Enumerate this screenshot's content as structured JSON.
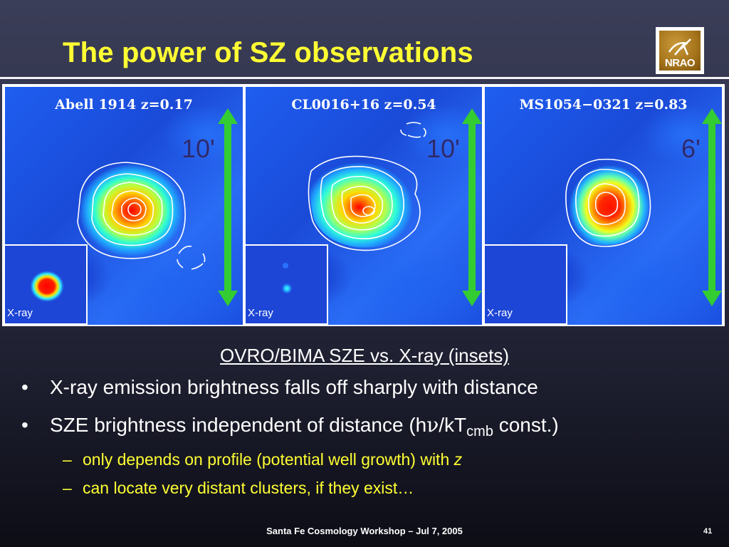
{
  "slide": {
    "title": "The power of SZ observations",
    "logo_text": "NRAO",
    "panels": [
      {
        "label": "Abell 1914 z=0.17",
        "scale": "10'",
        "inset_label": "X-ray"
      },
      {
        "label": "CL0016+16 z=0.54",
        "scale": "10'",
        "inset_label": "X-ray"
      },
      {
        "label": "MS1054−0321 z=0.83",
        "scale": "6'",
        "inset_label": "X-ray"
      }
    ],
    "subtitle": "OVRO/BIMA SZE vs. X-ray (insets)",
    "bullet1": "X-ray emission brightness falls off sharply with distance",
    "bullet2_prefix": "SZE brightness independent of distance (h",
    "bullet2_nu": "ν",
    "bullet2_kt": "/kT",
    "bullet2_sub": "cmb",
    "bullet2_suffix": " const.)",
    "bullet_char": "•",
    "dash_char": "–",
    "sub1_text": "only depends on profile (potential well growth) with ",
    "sub1_italic": "z",
    "sub2_text": "can locate very distant clusters, if they exist…",
    "footer": "Santa Fe Cosmology Workshop  – Jul 7, 2005",
    "page_number": "41"
  },
  "colors": {
    "title": "#ffff33",
    "arrow": "#33cc33",
    "sub_bullets": "#ffff33"
  },
  "icons": [
    "nrao-logo-icon",
    "double-arrow-icon"
  ]
}
